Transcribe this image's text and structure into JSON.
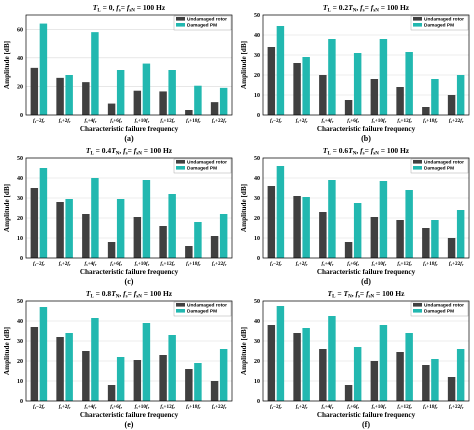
{
  "colors": {
    "undamaged": "#404040",
    "damaged": "#22b8b0",
    "grid": "#d9d9d9",
    "axis": "#000000"
  },
  "chart_data": [
    {
      "type": "bar",
      "title": "T_L = 0, f_s = f_sN = 100 Hz",
      "title_parts": [
        "T",
        "L",
        " = 0, ",
        "f",
        "s",
        "= ",
        "f",
        "sN",
        " = 100 Hz"
      ],
      "panel_label": "(a)",
      "xlabel": "Characteristic failure frequency",
      "ylabel": "Amplitude [dB]",
      "ylim": [
        0,
        70
      ],
      "yticks": [
        "0",
        "20",
        "40",
        "60"
      ],
      "categories": [
        "fs−2fr",
        "fs+2fr",
        "fs+4fr",
        "fs+6fr",
        "fs+10fr",
        "fs+12fr",
        "fs+18fr",
        "fs+22fr"
      ],
      "series": [
        {
          "name": "Undamaged rotor",
          "values": [
            33,
            26,
            23,
            8,
            17,
            16.5,
            3.5,
            9
          ]
        },
        {
          "name": "Damaged PM",
          "values": [
            64,
            28,
            58,
            31.5,
            36,
            31.5,
            20.5,
            19
          ]
        }
      ]
    },
    {
      "type": "bar",
      "title": "T_L = 0.2T_N, f_s = f_sN = 100 Hz",
      "title_parts": [
        "T",
        "L",
        " = 0.2",
        "T",
        "N",
        ", ",
        "f",
        "s",
        "= ",
        "f",
        "sN",
        " = 100 Hz"
      ],
      "panel_label": "(b)",
      "xlabel": "Characteristic failure frequency",
      "ylabel": "Amplitude [dB]",
      "ylim": [
        0,
        50
      ],
      "yticks": [
        "0",
        "10",
        "20",
        "30",
        "40",
        "50"
      ],
      "categories": [
        "fs−2fr",
        "fs+2fr",
        "fs+4fr",
        "fs+6fr",
        "fs+10fr",
        "fs+12fr",
        "fs+18fr",
        "fs+22fr"
      ],
      "series": [
        {
          "name": "Undamaged rotor",
          "values": [
            34,
            26,
            20,
            7.5,
            18,
            14,
            4,
            10
          ]
        },
        {
          "name": "Damaged PM",
          "values": [
            44.5,
            29,
            38,
            31,
            38,
            31.5,
            18,
            20
          ]
        }
      ]
    },
    {
      "type": "bar",
      "title": "T_L = 0.4T_N, f_s = f_sN = 100 Hz",
      "title_parts": [
        "T",
        "L",
        " = 0.4",
        "T",
        "N",
        ", ",
        "f",
        "s",
        "= ",
        "f",
        "sN",
        " = 100 Hz"
      ],
      "panel_label": "(c)",
      "xlabel": "Characteristic failure frequency",
      "ylabel": "Amplitude [dB]",
      "ylim": [
        0,
        50
      ],
      "yticks": [
        "0",
        "10",
        "20",
        "30",
        "40",
        "50"
      ],
      "categories": [
        "fs−2fr",
        "fs+2fr",
        "fs+4fr",
        "fs+6fr",
        "fs+10fr",
        "fs+12fr",
        "fs+18fr",
        "fs+22fr"
      ],
      "series": [
        {
          "name": "Undamaged rotor",
          "values": [
            35,
            28,
            22,
            8,
            20.5,
            16,
            6,
            11
          ]
        },
        {
          "name": "Damaged PM",
          "values": [
            45,
            29.5,
            40,
            29.5,
            39,
            32,
            18,
            22
          ]
        }
      ]
    },
    {
      "type": "bar",
      "title": "T_L = 0.6T_N, f_s = f_sN = 100 Hz",
      "title_parts": [
        "T",
        "L",
        " = 0.6",
        "T",
        "N",
        ", ",
        "f",
        "s",
        "= ",
        "f",
        "sN",
        " = 100 Hz"
      ],
      "panel_label": "(d)",
      "xlabel": "Characteristic failure frequency",
      "ylabel": "Amplitude [dB]",
      "ylim": [
        0,
        50
      ],
      "yticks": [
        "0",
        "10",
        "20",
        "30",
        "40",
        "50"
      ],
      "categories": [
        "fs−2fr",
        "fs+2fr",
        "fs+4fr",
        "fs+6fr",
        "fs+10fr",
        "fs+12fr",
        "fs+18fr",
        "fs+22fr"
      ],
      "series": [
        {
          "name": "Undamaged rotor",
          "values": [
            36,
            31,
            23,
            8,
            20.5,
            19,
            15,
            10
          ]
        },
        {
          "name": "Damaged PM",
          "values": [
            46,
            30.5,
            39,
            27.5,
            38.5,
            34,
            19,
            24
          ]
        }
      ]
    },
    {
      "type": "bar",
      "title": "T_L = 0.8T_N, f_s = f_sN = 100 Hz",
      "title_parts": [
        "T",
        "L",
        " = 0.8",
        "T",
        "N",
        ", ",
        "f",
        "s",
        "= ",
        "f",
        "sN",
        " = 100 Hz"
      ],
      "panel_label": "(e)",
      "xlabel": "Characteristic failure frequency",
      "ylabel": "Amplitude [dB]",
      "ylim": [
        0,
        50
      ],
      "yticks": [
        "0",
        "10",
        "20",
        "30",
        "40",
        "50"
      ],
      "categories": [
        "fs−2fr",
        "fs+2fr",
        "fs+4fr",
        "fs+6fr",
        "fs+10fr",
        "fs+12fr",
        "fs+18fr",
        "fs+22fr"
      ],
      "series": [
        {
          "name": "Undamaged rotor",
          "values": [
            37,
            32,
            25,
            8,
            20.5,
            23,
            16,
            10
          ]
        },
        {
          "name": "Damaged PM",
          "values": [
            47,
            34,
            41.5,
            22,
            39,
            33,
            19,
            26
          ]
        }
      ]
    },
    {
      "type": "bar",
      "title": "T_L = T_N, f_s = f_sN = 100 Hz",
      "title_parts": [
        "T",
        "L",
        " = ",
        "T",
        "N",
        ", ",
        "f",
        "s",
        "= ",
        "f",
        "sN",
        " = 100 Hz"
      ],
      "panel_label": "(f)",
      "xlabel": "Characteristic failure frequency",
      "ylabel": "Amplitude [dB]",
      "ylim": [
        0,
        50
      ],
      "yticks": [
        "0",
        "10",
        "20",
        "30",
        "40",
        "50"
      ],
      "categories": [
        "fs−2fr",
        "fs+2fr",
        "fs+4fr",
        "fs+6fr",
        "fs+10fr",
        "fs+12fr",
        "fs+18fr",
        "fs+22fr"
      ],
      "series": [
        {
          "name": "Undamaged rotor",
          "values": [
            38,
            34,
            26,
            8,
            20,
            24.5,
            18,
            12
          ]
        },
        {
          "name": "Damaged PM",
          "values": [
            47.5,
            36.5,
            42.5,
            27,
            38,
            34,
            21,
            26
          ]
        }
      ]
    }
  ]
}
